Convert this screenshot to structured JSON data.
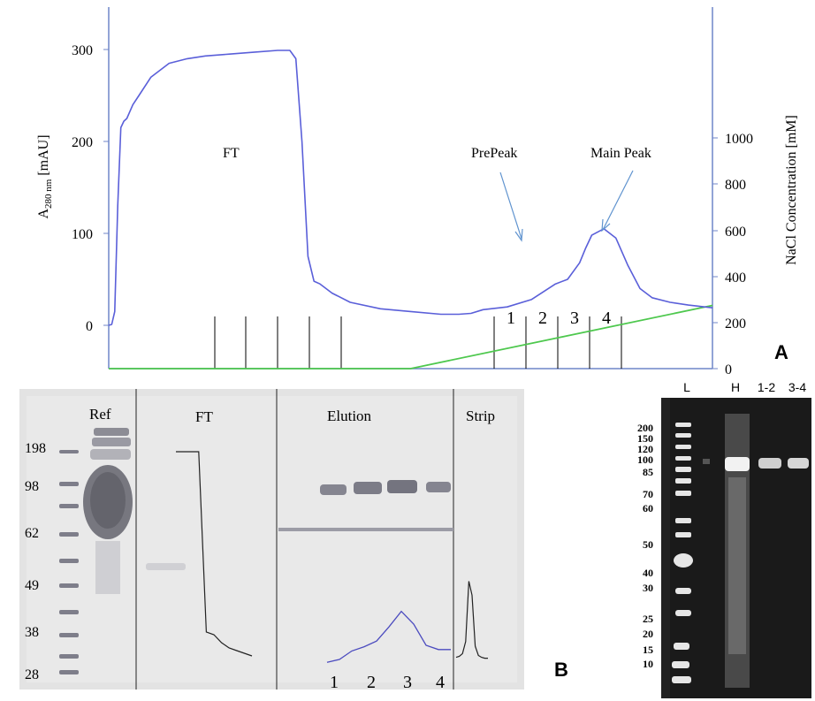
{
  "panel_a": {
    "letter": "A",
    "left_axis_label": "A",
    "left_axis_sub": "280 nm",
    "left_axis_unit": " [mAU]",
    "right_axis_label": "NaCl Concentration [mM]",
    "ann_ft": "FT",
    "ann_prepeak": "PrePeak",
    "ann_mainpeak": "Main Peak",
    "fractions": [
      "1",
      "2",
      "3",
      "4"
    ]
  },
  "panel_b": {
    "letter": "B",
    "ladder": [
      "198",
      "98",
      "62",
      "49",
      "38",
      "28"
    ],
    "headers": [
      "Ref",
      "FT",
      "Elution",
      "Strip"
    ],
    "fractions": [
      "1",
      "2",
      "3",
      "4"
    ]
  },
  "panel_c": {
    "headers": [
      "L",
      "H",
      "1-2",
      "3-4"
    ],
    "ladder": [
      "200",
      "150",
      "120",
      "100",
      "85",
      "70",
      "60",
      "50",
      "40",
      "30",
      "25",
      "20",
      "15",
      "10"
    ]
  },
  "colors": {
    "absorbance": "#5a5fd9",
    "salt": "#4ec84e",
    "axis": "#6f86c8"
  },
  "chart_data": [
    {
      "type": "line",
      "xlim": [
        0,
        100
      ],
      "ylim": [
        -50,
        340
      ],
      "y2lim": [
        0,
        1350
      ],
      "yticks": [
        0,
        100,
        200,
        300
      ],
      "y2ticks": [
        0,
        200,
        400,
        600,
        800,
        1000
      ],
      "grid": false,
      "series": [
        {
          "x": [
            0,
            0.5,
            1,
            1.5,
            2,
            2.5,
            3,
            4,
            5,
            7,
            10,
            13,
            16,
            20,
            24,
            28,
            30,
            31,
            32,
            33,
            34,
            35,
            37,
            40,
            45,
            50,
            55,
            58,
            60,
            62,
            66,
            70,
            74,
            76,
            78,
            79,
            80,
            82,
            84,
            86,
            88,
            90,
            93,
            96,
            100
          ],
          "values": [
            0,
            1,
            15,
            130,
            215,
            222,
            225,
            240,
            250,
            270,
            285,
            290,
            293,
            295,
            297,
            299,
            299,
            290,
            200,
            75,
            48,
            45,
            35,
            25,
            18,
            15,
            12,
            12,
            13,
            17,
            20,
            28,
            45,
            50,
            68,
            84,
            98,
            105,
            95,
            65,
            40,
            30,
            25,
            22,
            19
          ]
        },
        {
          "axis": "right",
          "x": [
            0,
            50,
            100
          ],
          "values": [
            0,
            0,
            275
          ]
        }
      ]
    },
    {
      "type": "line",
      "series": [
        {
          "x": [
            0,
            1,
            2,
            3,
            4,
            5,
            6,
            7,
            8,
            9,
            10
          ],
          "values": [
            166,
            166,
            166,
            166,
            30,
            28,
            22,
            18,
            16,
            14,
            12
          ]
        },
        {
          "x": [
            0,
            1,
            2,
            3,
            4,
            5,
            6,
            7,
            8,
            9,
            10
          ],
          "values": [
            3,
            5,
            11,
            14,
            18,
            28,
            39,
            30,
            15,
            12,
            12
          ]
        },
        {
          "x": [
            0,
            1,
            2,
            3,
            4,
            5,
            6,
            7,
            8,
            9,
            10
          ],
          "values": [
            8,
            9,
            12,
            25,
            90,
            75,
            20,
            10,
            8,
            7,
            7
          ]
        }
      ]
    }
  ]
}
